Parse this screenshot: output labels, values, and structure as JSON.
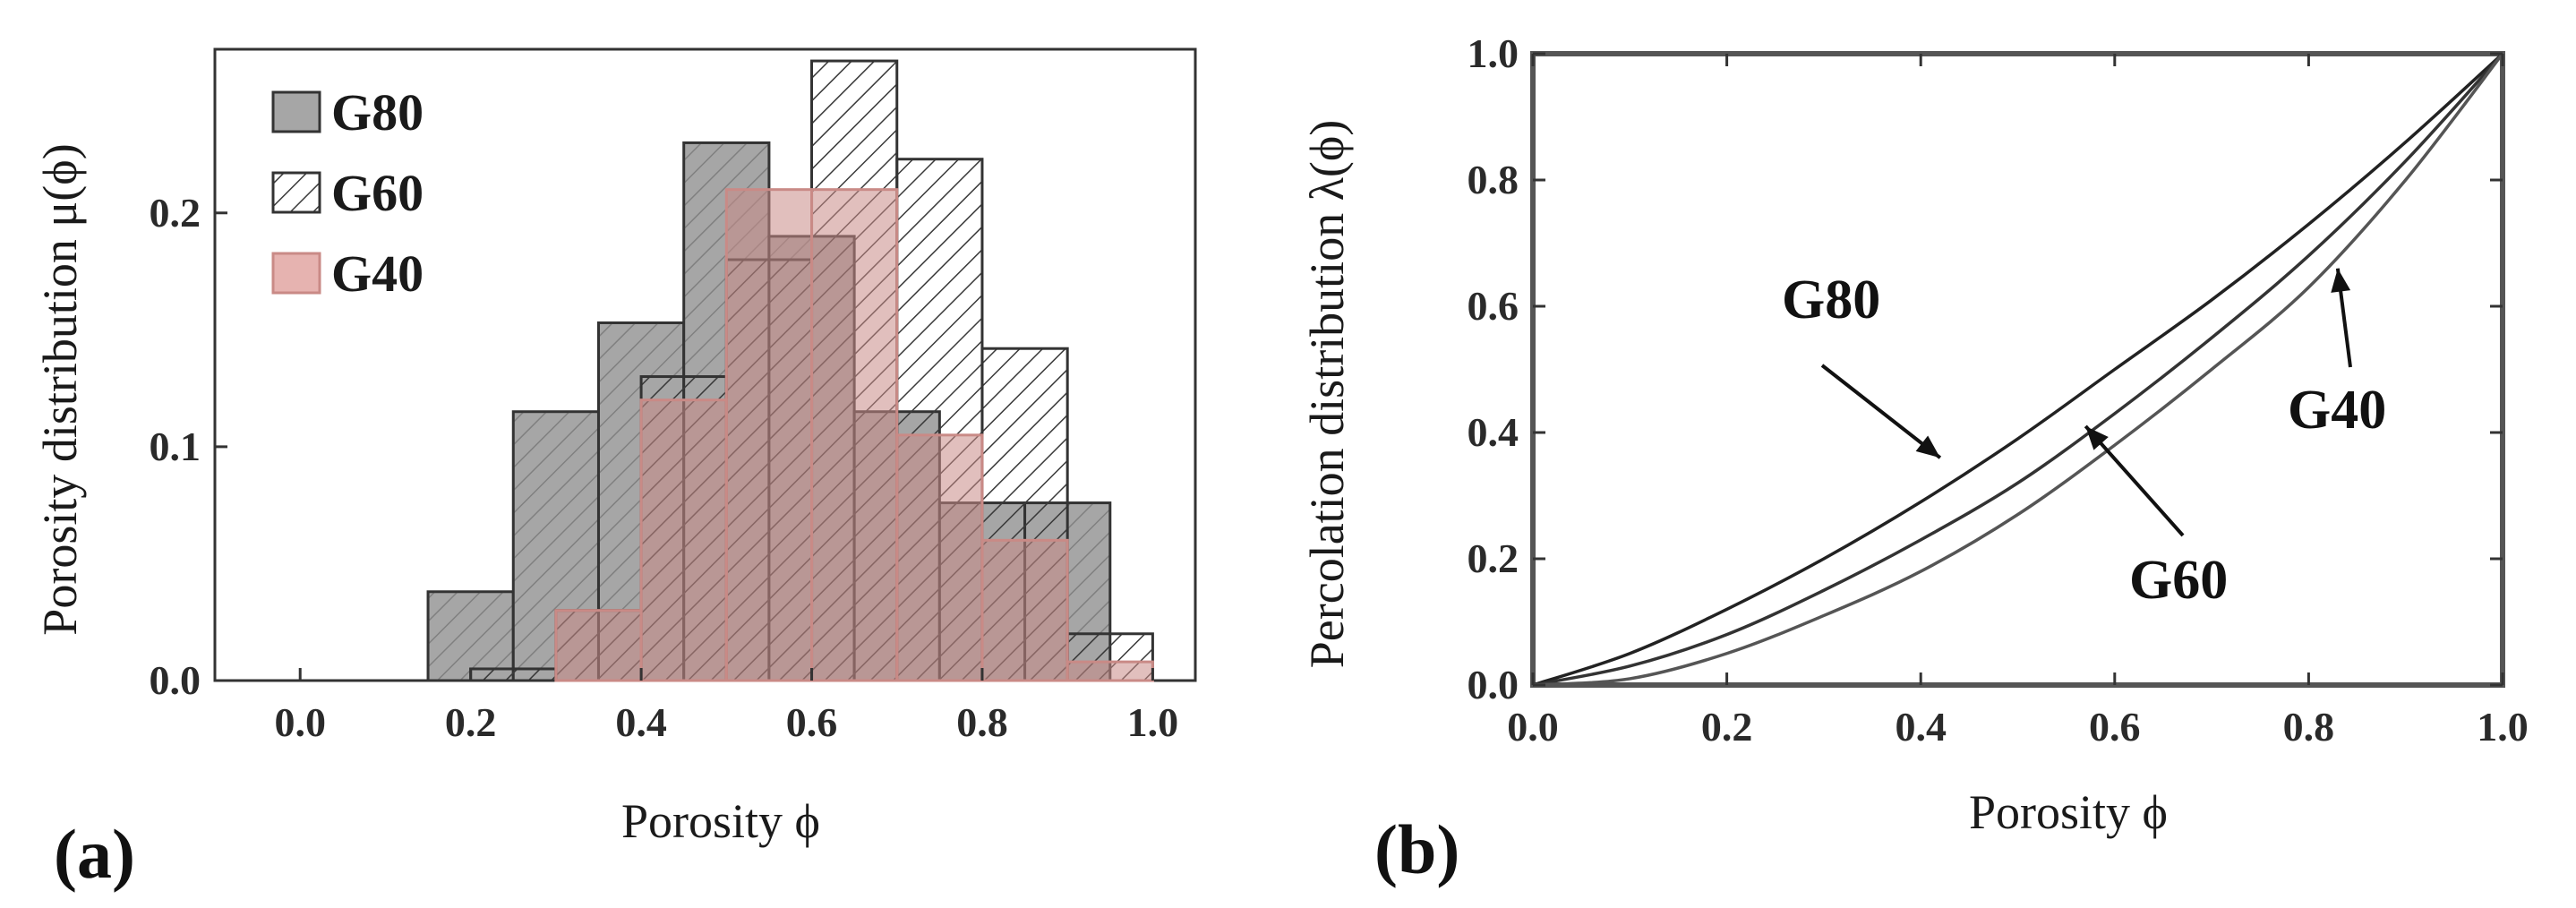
{
  "colors": {
    "G80": "#a6a6a6",
    "G60": "#ffffff",
    "G40": "#c98a86",
    "hatch": "#3a3a3a",
    "axis": "#333333"
  },
  "chart_data": [
    {
      "type": "bar",
      "panel_label": "(a)",
      "xlabel": "Porosity  ϕ",
      "ylabel": "Porosity distribution  μ(ϕ)",
      "xlim": [
        -0.1,
        1.05
      ],
      "ylim": [
        0,
        0.27
      ],
      "xticks": [
        "0.0",
        "0.2",
        "0.4",
        "0.6",
        "0.8",
        "1.0"
      ],
      "xtick_values": [
        0.0,
        0.2,
        0.4,
        0.6,
        0.8,
        1.0
      ],
      "yticks": [
        "0.0",
        "0.1",
        "0.2"
      ],
      "ytick_values": [
        0.0,
        0.1,
        0.2
      ],
      "legend_position": "top-left",
      "bin_width": 0.1,
      "series": [
        {
          "name": "G80",
          "style": "gray",
          "bin_centers": [
            0.2,
            0.3,
            0.4,
            0.5,
            0.6,
            0.7,
            0.8,
            0.9
          ],
          "values": [
            0.038,
            0.115,
            0.153,
            0.23,
            0.19,
            0.115,
            0.076,
            0.076
          ]
        },
        {
          "name": "G60",
          "style": "hatched",
          "bin_centers": [
            0.25,
            0.35,
            0.45,
            0.55,
            0.65,
            0.75,
            0.85,
            0.95
          ],
          "values": [
            0.005,
            0.03,
            0.13,
            0.18,
            0.265,
            0.223,
            0.142,
            0.02
          ]
        },
        {
          "name": "G40",
          "style": "pink",
          "bin_centers": [
            0.35,
            0.45,
            0.55,
            0.65,
            0.75,
            0.85,
            0.95
          ],
          "values": [
            0.03,
            0.12,
            0.21,
            0.21,
            0.105,
            0.06,
            0.008
          ]
        }
      ]
    },
    {
      "type": "line",
      "panel_label": "(b)",
      "xlabel": "Porosity  ϕ",
      "ylabel": "Percolation distribution  λ(ϕ)",
      "xlim": [
        0,
        1
      ],
      "ylim": [
        0,
        1
      ],
      "xticks": [
        "0.0",
        "0.2",
        "0.4",
        "0.6",
        "0.8",
        "1.0"
      ],
      "xtick_values": [
        0.0,
        0.2,
        0.4,
        0.6,
        0.8,
        1.0
      ],
      "yticks": [
        "0.0",
        "0.2",
        "0.4",
        "0.6",
        "0.8",
        "1.0"
      ],
      "ytick_values": [
        0.0,
        0.2,
        0.4,
        0.6,
        0.8,
        1.0
      ],
      "series": [
        {
          "name": "G80",
          "x": [
            0.0,
            0.1,
            0.2,
            0.3,
            0.4,
            0.5,
            0.6,
            0.7,
            0.8,
            0.9,
            1.0
          ],
          "y": [
            0.0,
            0.05,
            0.12,
            0.2,
            0.29,
            0.39,
            0.5,
            0.61,
            0.73,
            0.86,
            1.0
          ]
        },
        {
          "name": "G60",
          "x": [
            0.0,
            0.1,
            0.2,
            0.3,
            0.4,
            0.5,
            0.6,
            0.7,
            0.8,
            0.9,
            1.0
          ],
          "y": [
            0.0,
            0.03,
            0.08,
            0.15,
            0.23,
            0.32,
            0.43,
            0.55,
            0.68,
            0.83,
            1.0
          ]
        },
        {
          "name": "G40",
          "x": [
            0.0,
            0.1,
            0.2,
            0.3,
            0.4,
            0.5,
            0.6,
            0.7,
            0.8,
            0.9,
            1.0
          ],
          "y": [
            0.0,
            0.01,
            0.05,
            0.11,
            0.18,
            0.27,
            0.38,
            0.5,
            0.63,
            0.8,
            1.0
          ]
        }
      ],
      "annotations": [
        {
          "text": "G80",
          "target": [
            0.42,
            0.36
          ]
        },
        {
          "text": "G60",
          "target": [
            0.57,
            0.41
          ]
        },
        {
          "text": "G40",
          "target": [
            0.83,
            0.66
          ]
        }
      ]
    }
  ]
}
